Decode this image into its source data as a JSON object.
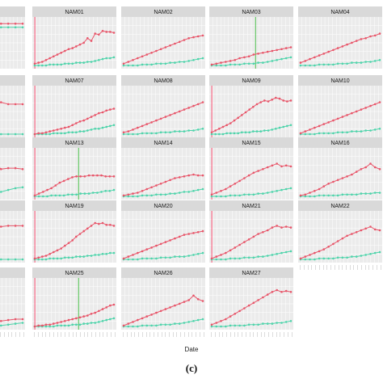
{
  "chart_data": {
    "type": "line",
    "xlabel": "Date",
    "caption": "(c)",
    "colors": {
      "upper": "#e8566a",
      "lower": "#4fd4ab",
      "marker_red": "#ff2a55",
      "marker_green": "#22b222"
    },
    "panels": [
      {
        "title": "",
        "upper": [
          46,
          47,
          47,
          47,
          47,
          47,
          47,
          46,
          46,
          46,
          46,
          46
        ],
        "lower": [
          42,
          42,
          42,
          42,
          42,
          42,
          42,
          42,
          42,
          42,
          42,
          42
        ]
      },
      {
        "title": "NAM01",
        "upper": [
          2,
          3,
          4,
          6,
          8,
          10,
          12,
          14,
          16,
          18,
          19,
          21,
          23,
          25,
          30,
          27,
          35,
          34,
          38,
          37,
          37,
          36
        ],
        "lower": [
          0,
          0,
          0,
          0,
          1,
          1,
          1,
          1,
          2,
          2,
          2,
          3,
          3,
          3,
          4,
          4,
          5,
          6,
          7,
          8,
          8,
          9
        ],
        "markers": [
          "red"
        ]
      },
      {
        "title": "NAM02",
        "upper": [
          2,
          4,
          6,
          8,
          10,
          12,
          14,
          16,
          18,
          20,
          22,
          24,
          26,
          28,
          30,
          31,
          32,
          33
        ],
        "lower": [
          0,
          0,
          0,
          0,
          1,
          1,
          1,
          2,
          2,
          2,
          3,
          3,
          4,
          4,
          5,
          6,
          7,
          8
        ]
      },
      {
        "title": "NAM03",
        "upper": [
          1,
          2,
          3,
          4,
          5,
          6,
          8,
          9,
          10,
          12,
          13,
          14,
          15,
          16,
          17,
          18,
          19,
          20
        ],
        "lower": [
          0,
          0,
          0,
          0,
          1,
          1,
          1,
          2,
          2,
          2,
          3,
          3,
          4,
          5,
          6,
          7,
          8,
          9
        ],
        "markers": [
          "green"
        ]
      },
      {
        "title": "NAM04",
        "upper": [
          3,
          5,
          7,
          9,
          11,
          13,
          15,
          17,
          19,
          21,
          23,
          25,
          27,
          29,
          30,
          32,
          33,
          35
        ],
        "lower": [
          0,
          0,
          0,
          0,
          1,
          1,
          1,
          1,
          2,
          2,
          2,
          3,
          3,
          3,
          4,
          4,
          5,
          6
        ]
      },
      {
        "title": "",
        "upper": [
          30,
          31,
          30,
          31,
          31,
          30,
          32,
          33,
          35,
          33,
          33,
          33
        ],
        "lower": [
          0,
          0,
          0,
          0,
          0,
          0,
          0,
          0,
          0,
          0,
          0,
          0
        ]
      },
      {
        "title": "NAM07",
        "upper": [
          0,
          1,
          1,
          2,
          3,
          4,
          5,
          6,
          7,
          8,
          10,
          12,
          14,
          15,
          17,
          19,
          21,
          23,
          24,
          26,
          27,
          28
        ],
        "lower": [
          0,
          0,
          0,
          0,
          0,
          1,
          1,
          1,
          1,
          2,
          2,
          2,
          3,
          3,
          4,
          5,
          6,
          6,
          7,
          8,
          9,
          10
        ],
        "markers": [
          "red"
        ]
      },
      {
        "title": "NAM08",
        "upper": [
          2,
          3,
          5,
          7,
          9,
          11,
          13,
          15,
          17,
          19,
          21,
          23,
          25,
          27,
          29,
          31,
          33,
          35
        ],
        "lower": [
          0,
          0,
          0,
          0,
          1,
          1,
          1,
          1,
          2,
          2,
          2,
          3,
          3,
          3,
          4,
          4,
          5,
          6
        ]
      },
      {
        "title": "NAM09",
        "upper": [
          2,
          4,
          6,
          8,
          10,
          12,
          15,
          18,
          21,
          24,
          27,
          30,
          33,
          35,
          37,
          36,
          38,
          40,
          39,
          37,
          36,
          37
        ],
        "lower": [
          0,
          0,
          0,
          0,
          1,
          1,
          1,
          1,
          2,
          2,
          2,
          3,
          3,
          3,
          4,
          4,
          5,
          6,
          7,
          8,
          9,
          10
        ],
        "markers": [
          "red"
        ]
      },
      {
        "title": "NAM10",
        "upper": [
          1,
          3,
          5,
          7,
          9,
          11,
          13,
          15,
          17,
          19,
          21,
          23,
          25,
          27,
          29,
          31,
          33,
          35
        ],
        "lower": [
          0,
          0,
          0,
          0,
          1,
          1,
          1,
          1,
          2,
          2,
          2,
          3,
          3,
          3,
          4,
          4,
          5,
          6
        ]
      },
      {
        "title": "",
        "upper": [
          32,
          33,
          34,
          31,
          36,
          34,
          34,
          38,
          30,
          31,
          31,
          30
        ],
        "lower": [
          0,
          0,
          0,
          0,
          0,
          0,
          2,
          3,
          5,
          7,
          9,
          10
        ]
      },
      {
        "title": "NAM13",
        "upper": [
          1,
          3,
          5,
          7,
          9,
          12,
          15,
          17,
          19,
          21,
          22,
          22,
          22,
          23,
          23,
          23,
          23,
          22,
          22,
          22
        ],
        "lower": [
          0,
          0,
          0,
          0,
          1,
          1,
          1,
          1,
          2,
          2,
          2,
          3,
          3,
          3,
          4,
          4,
          5,
          6,
          6,
          7
        ],
        "markers": [
          "red",
          "green"
        ]
      },
      {
        "title": "NAM14",
        "upper": [
          1,
          2,
          3,
          4,
          6,
          8,
          10,
          12,
          14,
          16,
          18,
          20,
          21,
          22,
          23,
          24,
          23,
          23
        ],
        "lower": [
          0,
          0,
          0,
          0,
          1,
          1,
          1,
          2,
          2,
          2,
          3,
          3,
          4,
          5,
          5,
          6,
          7,
          8
        ]
      },
      {
        "title": "NAM15",
        "upper": [
          2,
          4,
          6,
          8,
          11,
          14,
          17,
          20,
          23,
          26,
          28,
          30,
          32,
          34,
          36,
          33,
          34,
          33
        ],
        "lower": [
          0,
          0,
          0,
          0,
          1,
          1,
          1,
          2,
          2,
          2,
          3,
          3,
          4,
          5,
          6,
          7,
          8,
          9
        ],
        "markers": [
          "red"
        ]
      },
      {
        "title": "NAM16",
        "upper": [
          1,
          2,
          4,
          6,
          8,
          11,
          14,
          16,
          18,
          20,
          22,
          24,
          27,
          30,
          32,
          36,
          32,
          30
        ],
        "lower": [
          0,
          0,
          0,
          0,
          1,
          1,
          1,
          1,
          1,
          2,
          2,
          2,
          2,
          3,
          3,
          3,
          4,
          4
        ]
      },
      {
        "title": "",
        "upper": [
          38,
          36,
          38,
          39,
          37,
          39,
          37,
          38,
          36,
          37,
          37,
          37
        ],
        "lower": [
          0,
          0,
          0,
          0,
          0,
          0,
          0,
          0,
          0,
          0,
          0,
          0
        ]
      },
      {
        "title": "NAM19",
        "upper": [
          1,
          2,
          3,
          4,
          6,
          8,
          10,
          12,
          15,
          18,
          21,
          25,
          28,
          31,
          34,
          37,
          40,
          39,
          40,
          38,
          38,
          37
        ],
        "lower": [
          0,
          0,
          0,
          0,
          1,
          1,
          1,
          1,
          2,
          2,
          2,
          3,
          3,
          3,
          4,
          4,
          5,
          5,
          6,
          6,
          7,
          7
        ],
        "markers": [
          "red"
        ]
      },
      {
        "title": "NAM20",
        "upper": [
          1,
          3,
          5,
          7,
          9,
          11,
          13,
          15,
          17,
          19,
          21,
          23,
          25,
          27,
          28,
          29,
          30,
          31
        ],
        "lower": [
          0,
          0,
          0,
          0,
          1,
          1,
          1,
          1,
          2,
          2,
          2,
          3,
          3,
          3,
          4,
          5,
          6,
          7
        ]
      },
      {
        "title": "NAM21",
        "upper": [
          1,
          3,
          5,
          7,
          10,
          13,
          16,
          19,
          22,
          25,
          28,
          30,
          32,
          35,
          37,
          35,
          36,
          35
        ],
        "lower": [
          0,
          0,
          0,
          0,
          1,
          1,
          1,
          2,
          2,
          2,
          3,
          3,
          4,
          5,
          6,
          7,
          8,
          9
        ],
        "markers": [
          "red"
        ]
      },
      {
        "title": "NAM22",
        "upper": [
          1,
          3,
          5,
          7,
          9,
          11,
          14,
          17,
          20,
          23,
          26,
          28,
          30,
          32,
          34,
          36,
          33,
          32
        ],
        "lower": [
          0,
          0,
          0,
          0,
          1,
          1,
          1,
          1,
          2,
          2,
          2,
          3,
          3,
          4,
          5,
          6,
          7,
          8
        ]
      },
      {
        "title": "",
        "upper": [
          0,
          1,
          2,
          3,
          3,
          4,
          4,
          5,
          6,
          7,
          8,
          8
        ],
        "lower": [
          0,
          0,
          0,
          0,
          0,
          0,
          1,
          1,
          1,
          2,
          3,
          4
        ]
      },
      {
        "title": "NAM25",
        "upper": [
          0,
          1,
          1,
          2,
          2,
          3,
          4,
          5,
          6,
          7,
          8,
          9,
          10,
          11,
          12,
          14,
          15,
          17,
          19,
          21,
          23,
          24
        ],
        "lower": [
          0,
          0,
          0,
          0,
          0,
          0,
          1,
          1,
          1,
          1,
          2,
          2,
          2,
          3,
          3,
          4,
          4,
          5,
          6,
          7,
          8,
          9
        ],
        "markers": [
          "red",
          "green"
        ]
      },
      {
        "title": "NAM26",
        "upper": [
          1,
          3,
          5,
          7,
          9,
          11,
          13,
          15,
          17,
          19,
          21,
          23,
          25,
          27,
          29,
          34,
          30,
          28
        ],
        "lower": [
          0,
          0,
          0,
          0,
          1,
          1,
          1,
          1,
          2,
          2,
          2,
          3,
          3,
          4,
          5,
          6,
          7,
          8
        ]
      },
      {
        "title": "NAM27",
        "upper": [
          2,
          4,
          6,
          8,
          11,
          14,
          17,
          20,
          23,
          26,
          29,
          32,
          35,
          38,
          40,
          38,
          39,
          38
        ],
        "lower": [
          0,
          0,
          0,
          0,
          1,
          1,
          1,
          1,
          2,
          2,
          2,
          3,
          3,
          3,
          4,
          4,
          5,
          6
        ]
      }
    ]
  }
}
